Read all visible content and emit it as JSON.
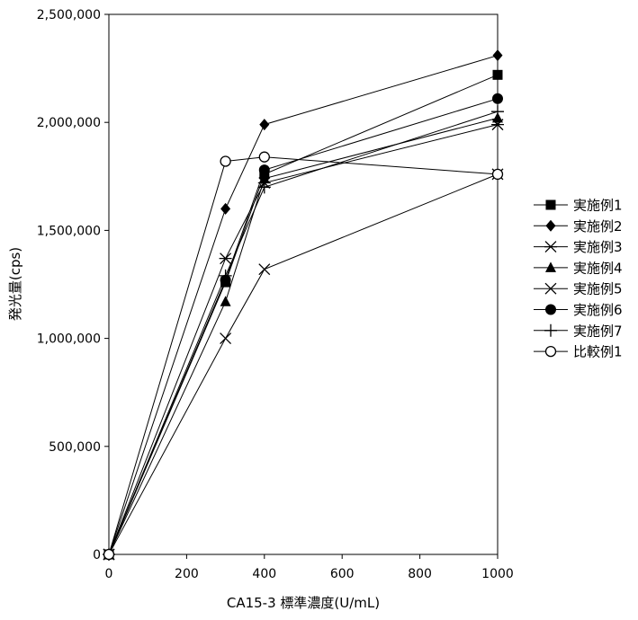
{
  "chart_data": {
    "type": "line",
    "title": "",
    "xlabel": "CA15-3 標準濃度(U/mL)",
    "ylabel": "発光量(cps)",
    "xlim": [
      0,
      1000
    ],
    "ylim": [
      0,
      2500000
    ],
    "x_ticks": [
      "0",
      "200",
      "400",
      "600",
      "800",
      "1000"
    ],
    "y_ticks": [
      "0",
      "500,000",
      "1,000,000",
      "1,500,000",
      "2,000,000",
      "2,500,000"
    ],
    "legend_position": "right",
    "grid": false,
    "series": [
      {
        "name": "実施例1",
        "marker": "square",
        "x": [
          0,
          300,
          400,
          1000
        ],
        "y": [
          0,
          1260000,
          1760000,
          2220000
        ]
      },
      {
        "name": "実施例2",
        "marker": "diamond",
        "x": [
          0,
          300,
          400,
          1000
        ],
        "y": [
          0,
          1600000,
          1990000,
          2310000
        ]
      },
      {
        "name": "実施例3",
        "marker": "asterisk",
        "x": [
          0,
          300,
          400,
          1000
        ],
        "y": [
          0,
          1370000,
          1720000,
          1990000
        ]
      },
      {
        "name": "実施例4",
        "marker": "triangle",
        "x": [
          0,
          300,
          400,
          1000
        ],
        "y": [
          0,
          1170000,
          1740000,
          2020000
        ]
      },
      {
        "name": "実施例5",
        "marker": "x",
        "x": [
          0,
          300,
          400,
          1000
        ],
        "y": [
          0,
          1000000,
          1320000,
          1760000
        ]
      },
      {
        "name": "実施例6",
        "marker": "circle",
        "x": [
          0,
          300,
          400,
          1000
        ],
        "y": [
          0,
          1270000,
          1780000,
          2110000
        ]
      },
      {
        "name": "実施例7",
        "marker": "plus",
        "x": [
          0,
          300,
          400,
          1000
        ],
        "y": [
          0,
          1290000,
          1700000,
          2050000
        ]
      },
      {
        "name": "比較例1",
        "marker": "open-circle",
        "x": [
          0,
          300,
          400,
          1000
        ],
        "y": [
          0,
          1820000,
          1840000,
          1760000
        ]
      }
    ]
  }
}
